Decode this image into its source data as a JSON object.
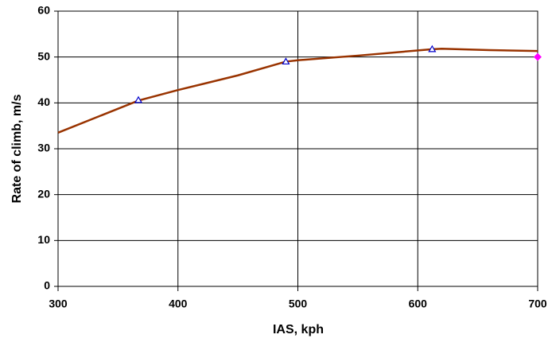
{
  "chart_data": {
    "type": "line",
    "x_label": "IAS, kph",
    "y_label": "Rate of climb, m/s",
    "xlim": [
      300,
      700
    ],
    "xticks": [
      300,
      400,
      500,
      600,
      700
    ],
    "ylim": [
      0,
      60
    ],
    "yticks": [
      0,
      10,
      20,
      30,
      40,
      50,
      60
    ],
    "grid": true,
    "series": [
      {
        "color": "#993300",
        "marker": "none",
        "x": [
          300,
          367,
          400,
          450,
          490,
          500,
          550,
          612,
          620,
          660,
          700
        ],
        "values": [
          33.5,
          40.5,
          42.8,
          46.0,
          49.0,
          49.3,
          50.3,
          51.7,
          51.8,
          51.5,
          51.3
        ]
      },
      {
        "color": "#0000cc",
        "marker": "triangle",
        "x": [
          367,
          490,
          612
        ],
        "values": [
          40.6,
          49.0,
          51.7
        ]
      },
      {
        "color": "#ff00ff",
        "marker": "diamond",
        "x": [
          700
        ],
        "values": [
          50.0
        ]
      }
    ]
  }
}
